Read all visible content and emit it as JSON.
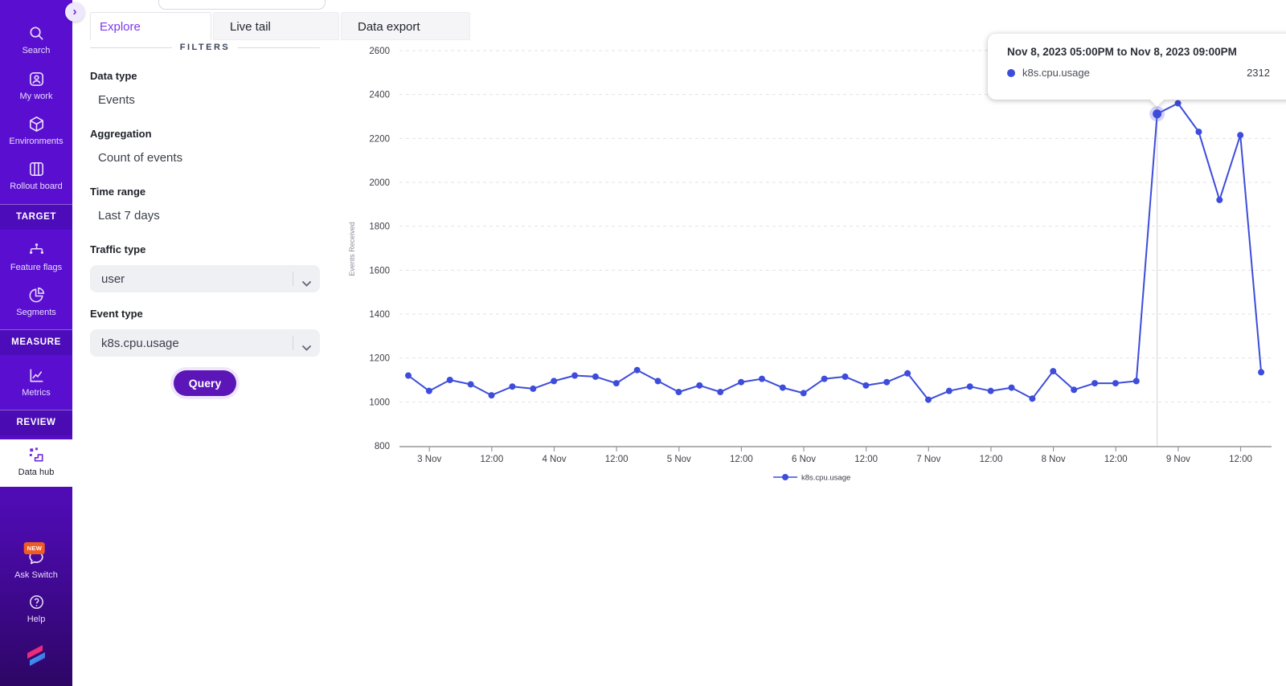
{
  "app": {
    "sidebar_bg": "#5a0fd0",
    "accent_purple": "#7c3aed",
    "series_color": "#3d4cdb",
    "badge_color": "#f05b24"
  },
  "sidebar": {
    "search": "Search",
    "my_work": "My work",
    "environments": "Environments",
    "rollout_board": "Rollout board",
    "target_header": "TARGET",
    "feature_flags": "Feature flags",
    "segments": "Segments",
    "measure_header": "MEASURE",
    "metrics": "Metrics",
    "review_header": "REVIEW",
    "data_hub": "Data hub",
    "ask_switch": "Ask Switch",
    "ask_switch_badge": "NEW",
    "help": "Help"
  },
  "tabs": {
    "explore": "Explore",
    "live_tail": "Live tail",
    "data_export": "Data export",
    "active": "Explore"
  },
  "filters": {
    "heading": "FILTERS",
    "data_type_label": "Data type",
    "data_type_value": "Events",
    "aggregation_label": "Aggregation",
    "aggregation_value": "Count of events",
    "time_range_label": "Time range",
    "time_range_value": "Last 7 days",
    "traffic_type_label": "Traffic type",
    "traffic_type_value": "user",
    "event_type_label": "Event type",
    "event_type_value": "k8s.cpu.usage",
    "query_label": "Query"
  },
  "tooltip": {
    "title": "Nov 8, 2023 05:00PM to Nov 8, 2023 09:00PM",
    "series_label": "k8s.cpu.usage",
    "value": "2312"
  },
  "chart_data": {
    "type": "line",
    "title": "",
    "xlabel": "",
    "ylabel": "Events Received",
    "ylim": [
      800,
      2600
    ],
    "y_ticks": [
      800,
      1000,
      1200,
      1400,
      1600,
      1800,
      2000,
      2200,
      2400,
      2600
    ],
    "x_tick_labels": [
      "3 Nov",
      "12:00",
      "4 Nov",
      "12:00",
      "5 Nov",
      "12:00",
      "6 Nov",
      "12:00",
      "7 Nov",
      "12:00",
      "8 Nov",
      "12:00",
      "9 Nov",
      "12:00"
    ],
    "x_start": "Nov 2, 2023 8:00PM",
    "x_bucket_hours": 4,
    "grid": "horizontal-dashed",
    "legend_position": "bottom-center",
    "series": [
      {
        "name": "k8s.cpu.usage",
        "color": "#3d4cdb",
        "values": [
          1120,
          1050,
          1100,
          1080,
          1030,
          1070,
          1060,
          1095,
          1120,
          1115,
          1085,
          1145,
          1095,
          1045,
          1075,
          1045,
          1090,
          1105,
          1065,
          1040,
          1105,
          1115,
          1075,
          1090,
          1130,
          1010,
          1050,
          1070,
          1050,
          1065,
          1015,
          1140,
          1055,
          1085,
          1085,
          1095,
          2312,
          2360,
          2230,
          1920,
          2215,
          1135
        ]
      }
    ],
    "highlight": {
      "index": 36,
      "value": 2312,
      "range_label": "Nov 8, 2023 05:00PM to Nov 8, 2023 09:00PM"
    }
  }
}
